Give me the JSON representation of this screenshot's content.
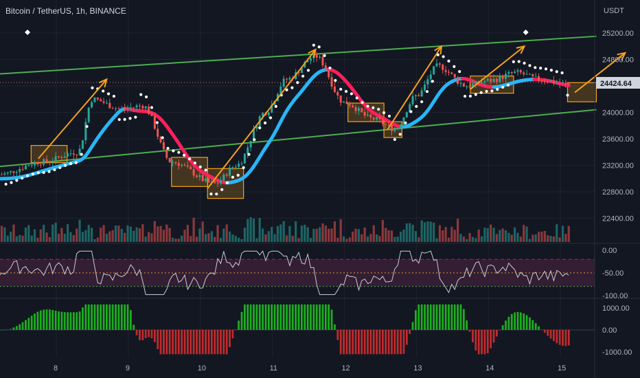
{
  "header": {
    "title": "Bitcoin / TetherUS, 1h, BINANCE",
    "currency": "USDT"
  },
  "colors": {
    "background": "#131722",
    "grid": "#1f2330",
    "up": "#26a69a",
    "down": "#ef5350",
    "channel": "#4caf50",
    "arrow": "#f7a21b",
    "box": "#f7a21b",
    "band_up": "#29b6f6",
    "band_down": "#ff1f5a",
    "sar": "#ffffff",
    "rsi_line": "#c9cdd6",
    "rsi_zone": "#3a2036",
    "macd_up": "#1fbf1f",
    "macd_down": "#d32f2f",
    "price_tag": "#d1d4dc"
  },
  "price_axis": {
    "ticks": [
      "25200.00",
      "24800.00",
      "24400.00",
      "24000.00",
      "23600.00",
      "23200.00",
      "22800.00",
      "22400.00"
    ],
    "current_price": "24424.64"
  },
  "rsi_axis": {
    "ticks": [
      "0.00",
      "-50.00",
      "-100.00"
    ]
  },
  "macd_axis": {
    "ticks": [
      "1000.00",
      "0.00",
      "-1000.00"
    ]
  },
  "time_axis": {
    "ticks": [
      "8",
      "9",
      "10",
      "11",
      "12",
      "13",
      "14",
      "15"
    ]
  },
  "chart_data": {
    "type": "candlestick",
    "title": "Bitcoin / TetherUS, 1h, BINANCE",
    "ylabel": "USDT",
    "ylim": [
      22400,
      25450
    ],
    "x": [
      "8",
      "9",
      "10",
      "11",
      "12",
      "13",
      "14",
      "15"
    ],
    "close_trend": [
      {
        "day": 7.2,
        "price": 23060
      },
      {
        "day": 7.8,
        "price": 23250
      },
      {
        "day": 8.3,
        "price": 23400
      },
      {
        "day": 8.5,
        "price": 24200
      },
      {
        "day": 8.9,
        "price": 24050
      },
      {
        "day": 9.2,
        "price": 24100
      },
      {
        "day": 9.6,
        "price": 23250
      },
      {
        "day": 10.2,
        "price": 22920
      },
      {
        "day": 10.5,
        "price": 23200
      },
      {
        "day": 10.9,
        "price": 24000
      },
      {
        "day": 11.2,
        "price": 24500
      },
      {
        "day": 11.6,
        "price": 24850
      },
      {
        "day": 12.0,
        "price": 24150
      },
      {
        "day": 12.4,
        "price": 23900
      },
      {
        "day": 12.7,
        "price": 23750
      },
      {
        "day": 13.0,
        "price": 24250
      },
      {
        "day": 13.3,
        "price": 24700
      },
      {
        "day": 13.7,
        "price": 24400
      },
      {
        "day": 14.0,
        "price": 24480
      },
      {
        "day": 14.4,
        "price": 24600
      },
      {
        "day": 14.7,
        "price": 24500
      },
      {
        "day": 15.1,
        "price": 24420
      }
    ],
    "channel_upper": {
      "start": {
        "day": 7.2,
        "price": 24580
      },
      "end": {
        "day": 15.5,
        "price": 25150
      }
    },
    "channel_lower": {
      "start": {
        "day": 7.2,
        "price": 23180
      },
      "end": {
        "day": 15.5,
        "price": 24040
      }
    },
    "consolidation_boxes": [
      {
        "day_from": 7.65,
        "day_to": 8.15,
        "price_from": 23240,
        "price_to": 23500
      },
      {
        "day_from": 9.6,
        "day_to": 10.1,
        "price_from": 22880,
        "price_to": 23320
      },
      {
        "day_from": 10.1,
        "day_to": 10.6,
        "price_from": 22700,
        "price_to": 23150
      },
      {
        "day_from": 12.05,
        "day_to": 12.55,
        "price_from": 23860,
        "price_to": 24140
      },
      {
        "day_from": 12.55,
        "day_to": 12.8,
        "price_from": 23620,
        "price_to": 23860
      },
      {
        "day_from": 13.75,
        "day_to": 14.35,
        "price_from": 24290,
        "price_to": 24550
      },
      {
        "day_from": 15.1,
        "day_to": 15.5,
        "price_from": 24160,
        "price_to": 24450
      }
    ],
    "projection_arrows": [
      {
        "from": {
          "day": 7.75,
          "price": 23300
        },
        "to": {
          "day": 8.7,
          "price": 24500
        }
      },
      {
        "from": {
          "day": 10.1,
          "price": 22850
        },
        "to": {
          "day": 11.6,
          "price": 24950
        }
      },
      {
        "from": {
          "day": 12.6,
          "price": 23740
        },
        "to": {
          "day": 13.35,
          "price": 25000
        }
      },
      {
        "from": {
          "day": 13.75,
          "price": 24350
        },
        "to": {
          "day": 14.5,
          "price": 25000
        }
      },
      {
        "from": {
          "day": 15.2,
          "price": 24300
        },
        "to": {
          "day": 15.9,
          "price": 24900
        }
      }
    ],
    "markers": [
      {
        "day": 7.6,
        "price": 25180
      },
      {
        "day": 14.52,
        "price": 25180
      }
    ],
    "rsi": {
      "ylim": [
        -110,
        10
      ],
      "upper": -20,
      "middle": -50,
      "lower": -80
    },
    "macd": {
      "ylim": [
        -1300,
        1300
      ]
    }
  }
}
